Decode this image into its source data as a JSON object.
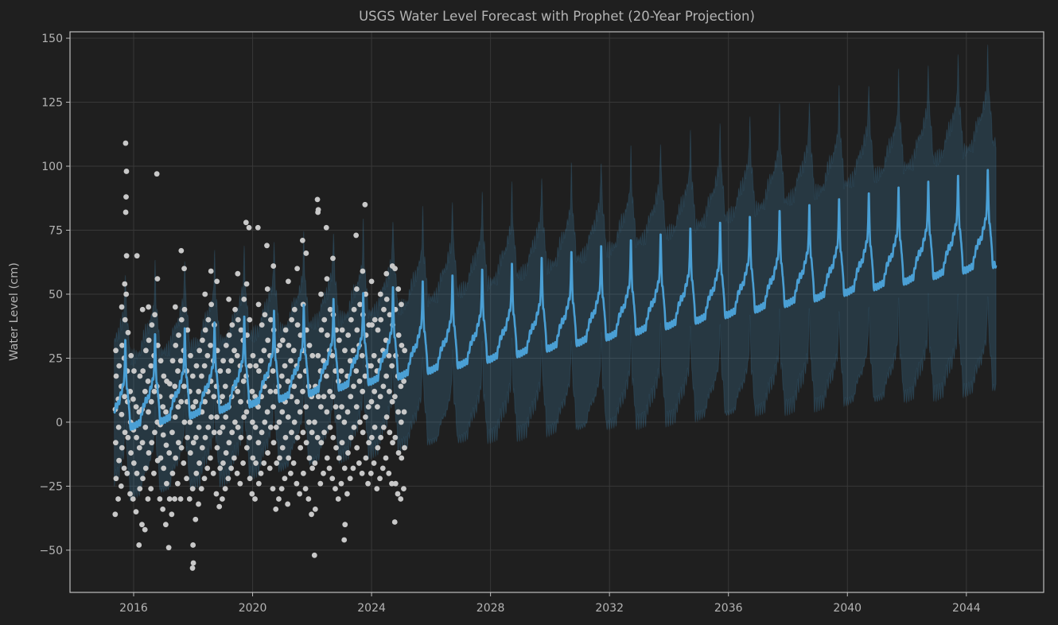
{
  "chart_data": {
    "type": "line",
    "title": "USGS Water Level Forecast with Prophet (20-Year Projection)",
    "xlabel": "",
    "ylabel": "Water Level (cm)",
    "xlim": [
      2013.86,
      2046.6
    ],
    "ylim": [
      -66.5,
      152.5
    ],
    "grid": true,
    "x_ticks": [
      "2016",
      "2020",
      "2024",
      "2028",
      "2032",
      "2036",
      "2040",
      "2044"
    ],
    "x_tick_values": [
      2016,
      2020,
      2024,
      2028,
      2032,
      2036,
      2040,
      2044
    ],
    "y_ticks": [
      "150",
      "125",
      "100",
      "75",
      "50",
      "25",
      "0",
      "−25",
      "−50"
    ],
    "y_tick_values": [
      150,
      125,
      100,
      75,
      50,
      25,
      0,
      -25,
      -50
    ],
    "colors": {
      "background": "#1f1f1f",
      "observed": "#c8c8c8",
      "forecast": "#4a9fd4",
      "interval": "#3f6f8f",
      "grid": "#383838",
      "text": "#b4b4b4"
    },
    "forecast": {
      "start": 2015.35,
      "end": 2045.0,
      "forecast_start": 2025.1,
      "trend_start": 1,
      "trend_end": 66,
      "seasonality_profile": [
        [
          0,
          -4
        ],
        [
          0.22,
          -3
        ],
        [
          0.3,
          2
        ],
        [
          0.4,
          5
        ],
        [
          0.5,
          6
        ],
        [
          0.58,
          10
        ],
        [
          0.66,
          13
        ],
        [
          0.7,
          20
        ],
        [
          0.72,
          31
        ],
        [
          0.745,
          20
        ],
        [
          0.77,
          11
        ],
        [
          0.83,
          7
        ],
        [
          0.88,
          -4
        ],
        [
          1,
          -4
        ]
      ],
      "interval_halfwidth_start": 27,
      "interval_halfwidth_end": 48
    },
    "observed_series": [
      [
        2015.4,
        -36,
        -22,
        -8,
        5,
        18,
        28
      ],
      [
        2015.5,
        -30,
        -15,
        -2,
        9,
        22
      ],
      [
        2015.6,
        -25,
        -10,
        3,
        14,
        30,
        45
      ],
      [
        2015.7,
        -18,
        -4,
        10,
        25,
        40,
        54
      ],
      [
        2015.75,
        109,
        98,
        88,
        82,
        65,
        50
      ],
      [
        2015.8,
        -20,
        -6,
        8,
        20,
        35
      ],
      [
        2015.9,
        -28,
        -12,
        0,
        12,
        26
      ],
      [
        2016.0,
        -30,
        -16,
        -3,
        9,
        20
      ],
      [
        2016.1,
        -35,
        -20,
        -6,
        6,
        65
      ],
      [
        2016.2,
        -48,
        -26,
        -10,
        4,
        18
      ],
      [
        2016.3,
        -40,
        -22,
        -8,
        5,
        20,
        44
      ],
      [
        2016.4,
        -42,
        -18,
        -2,
        12,
        28
      ],
      [
        2016.5,
        -30,
        -12,
        4,
        16,
        32,
        45
      ],
      [
        2016.6,
        -26,
        -8,
        8,
        22,
        38
      ],
      [
        2016.7,
        -20,
        -4,
        12,
        26,
        42
      ],
      [
        2016.8,
        97,
        -15,
        0,
        14,
        30,
        56
      ],
      [
        2016.9,
        -30,
        -14,
        -1,
        10,
        24
      ],
      [
        2017.0,
        -34,
        -18,
        -5,
        6,
        18
      ],
      [
        2017.1,
        -40,
        -24,
        -9,
        4,
        16
      ],
      [
        2017.2,
        -49,
        -30,
        -12,
        2,
        15
      ],
      [
        2017.3,
        -36,
        -20,
        -4,
        10,
        24
      ],
      [
        2017.4,
        -30,
        -14,
        2,
        14,
        30,
        45
      ],
      [
        2017.5,
        -24,
        -8,
        6,
        20,
        34
      ],
      [
        2017.6,
        -30,
        -10,
        8,
        24,
        40,
        67
      ],
      [
        2017.7,
        -16,
        0,
        14,
        28,
        44,
        60
      ],
      [
        2017.8,
        -22,
        -6,
        8,
        20,
        36
      ],
      [
        2017.9,
        -30,
        -12,
        0,
        12,
        26
      ],
      [
        2018.0,
        -57,
        -55,
        -48,
        -26,
        -8,
        6,
        18
      ],
      [
        2018.1,
        -38,
        -20,
        -6,
        8,
        22
      ],
      [
        2018.2,
        -32,
        -16,
        -2,
        12,
        28
      ],
      [
        2018.3,
        -26,
        -10,
        4,
        18,
        32
      ],
      [
        2018.4,
        -22,
        -6,
        8,
        22,
        36,
        50
      ],
      [
        2018.5,
        -18,
        -2,
        12,
        26,
        40
      ],
      [
        2018.6,
        -14,
        2,
        16,
        30,
        46,
        59
      ],
      [
        2018.7,
        -20,
        -4,
        10,
        24,
        38
      ],
      [
        2018.8,
        -28,
        -10,
        2,
        14,
        28,
        55
      ],
      [
        2018.9,
        -33,
        -18,
        -4,
        8,
        20
      ],
      [
        2019.0,
        -30,
        -16,
        -2,
        10,
        24
      ],
      [
        2019.1,
        -26,
        -12,
        2,
        14,
        30
      ],
      [
        2019.2,
        -22,
        -8,
        6,
        20,
        34,
        48
      ],
      [
        2019.3,
        -18,
        -4,
        10,
        24,
        38
      ],
      [
        2019.4,
        -14,
        0,
        14,
        28,
        44
      ],
      [
        2019.5,
        -20,
        -2,
        12,
        26,
        40,
        58
      ],
      [
        2019.6,
        -24,
        -6,
        8,
        22,
        36
      ],
      [
        2019.7,
        -16,
        2,
        16,
        32,
        48
      ],
      [
        2019.8,
        78,
        -10,
        4,
        18,
        34,
        54
      ],
      [
        2019.9,
        76,
        -22,
        -6,
        8,
        22,
        40
      ],
      [
        2020.0,
        -28,
        -14,
        0,
        12,
        26
      ],
      [
        2020.1,
        -30,
        -16,
        -2,
        10,
        22
      ],
      [
        2020.2,
        76,
        -24,
        -8,
        6,
        20,
        46
      ],
      [
        2020.3,
        -20,
        -4,
        10,
        24,
        38
      ],
      [
        2020.4,
        -16,
        0,
        14,
        28,
        42
      ],
      [
        2020.5,
        69,
        -12,
        4,
        18,
        32,
        52
      ],
      [
        2020.6,
        -18,
        -2,
        12,
        26,
        40
      ],
      [
        2020.7,
        -26,
        -8,
        6,
        20,
        36,
        61
      ],
      [
        2020.8,
        -34,
        -16,
        -2,
        12,
        28
      ],
      [
        2020.9,
        -30,
        -14,
        0,
        14,
        30
      ],
      [
        2021.0,
        -26,
        -10,
        4,
        18,
        32
      ],
      [
        2021.1,
        -22,
        -6,
        8,
        22,
        36
      ],
      [
        2021.2,
        -32,
        -14,
        2,
        16,
        30,
        55
      ],
      [
        2021.3,
        -20,
        -4,
        10,
        24,
        40
      ],
      [
        2021.4,
        -16,
        0,
        14,
        28,
        44
      ],
      [
        2021.5,
        -24,
        -6,
        8,
        22,
        38,
        60
      ],
      [
        2021.6,
        -28,
        -10,
        4,
        18,
        34
      ],
      [
        2021.7,
        71,
        -20,
        -4,
        12,
        28,
        46
      ],
      [
        2021.8,
        -26,
        -8,
        6,
        20,
        36,
        66
      ],
      [
        2021.9,
        -30,
        -14,
        0,
        14,
        30
      ],
      [
        2022.0,
        -36,
        -18,
        -4,
        10,
        26
      ],
      [
        2022.1,
        -52,
        -34,
        -16,
        0,
        14
      ],
      [
        2022.2,
        87,
        83,
        82,
        -6,
        10,
        26
      ],
      [
        2022.3,
        -24,
        -8,
        6,
        20,
        36,
        50
      ],
      [
        2022.4,
        -20,
        -4,
        10,
        24,
        40
      ],
      [
        2022.5,
        76,
        -14,
        4,
        18,
        34,
        56
      ],
      [
        2022.6,
        -18,
        -2,
        12,
        28,
        44
      ],
      [
        2022.7,
        -22,
        -6,
        10,
        26,
        42,
        64
      ],
      [
        2022.8,
        -26,
        -10,
        6,
        20,
        36
      ],
      [
        2022.9,
        -30,
        -14,
        2,
        16,
        32
      ],
      [
        2023.0,
        -24,
        -8,
        6,
        20,
        36
      ],
      [
        2023.1,
        -46,
        -40,
        -18,
        0,
        14,
        28
      ],
      [
        2023.2,
        -28,
        -12,
        4,
        18,
        34
      ],
      [
        2023.3,
        -22,
        -6,
        10,
        24,
        40
      ],
      [
        2023.4,
        -18,
        -2,
        14,
        28,
        44
      ],
      [
        2023.5,
        73,
        -10,
        6,
        20,
        36,
        52
      ],
      [
        2023.6,
        -16,
        0,
        16,
        30,
        46
      ],
      [
        2023.7,
        -20,
        -4,
        12,
        26,
        42,
        59
      ],
      [
        2023.8,
        85,
        -14,
        2,
        18,
        34,
        50
      ],
      [
        2023.9,
        -24,
        -8,
        6,
        22,
        38
      ],
      [
        2024.0,
        -20,
        -6,
        8,
        22,
        38,
        55
      ],
      [
        2024.1,
        -16,
        -2,
        12,
        26,
        40
      ],
      [
        2024.2,
        -26,
        -10,
        6,
        20,
        36
      ],
      [
        2024.3,
        -22,
        -6,
        10,
        24,
        40,
        50
      ],
      [
        2024.4,
        -18,
        -2,
        14,
        28,
        44
      ],
      [
        2024.5,
        -14,
        2,
        18,
        32,
        48,
        58
      ],
      [
        2024.6,
        -20,
        -4,
        12,
        26,
        42
      ],
      [
        2024.7,
        -24,
        -8,
        8,
        22,
        38,
        61
      ],
      [
        2024.8,
        -39,
        -24,
        -6,
        10,
        26,
        44,
        60
      ],
      [
        2024.9,
        -28,
        -12,
        4,
        18,
        34,
        52
      ],
      [
        2025.0,
        -30,
        -14,
        0,
        14,
        30,
        46
      ],
      [
        2025.1,
        -26,
        -10,
        4,
        16,
        28
      ]
    ]
  }
}
